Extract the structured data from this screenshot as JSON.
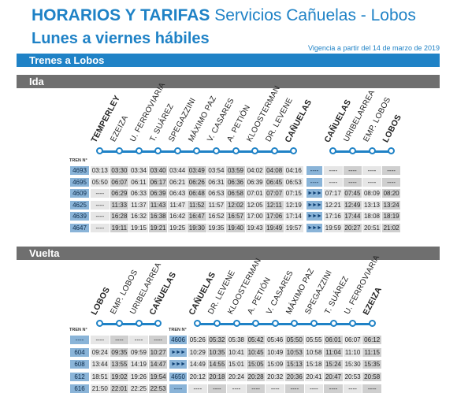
{
  "header": {
    "title_bold": "HORARIOS Y TARIFAS",
    "title_rest": "Servicios Cañuelas - Lobos",
    "subtitle": "Lunes a viernes hábiles",
    "vigencia": "Vigencia a partir del 14 de marzo de 2019"
  },
  "section": "Trenes a Lobos",
  "tren_label": "TREN N°",
  "colors": {
    "accent": "#1f82c6",
    "bar_gray": "#6f6f6f",
    "train_cell": "#8ab4d8",
    "cell_light": "#e6e6e6",
    "cell_mid": "#cfcfcf"
  },
  "ida": {
    "title": "Ida",
    "stations_left": [
      {
        "name": "TEMPERLEY",
        "bold": true
      },
      {
        "name": "EZEIZA",
        "bold": false
      },
      {
        "name": "U. FERROVIARIA",
        "bold": false
      },
      {
        "name": "T. SUÁREZ",
        "bold": false
      },
      {
        "name": "SPEGAZZINI",
        "bold": false
      },
      {
        "name": "MÁXIMO PAZ",
        "bold": false
      },
      {
        "name": "V. CASARES",
        "bold": false
      },
      {
        "name": "A. PETIÓN",
        "bold": false
      },
      {
        "name": "KLOOSTERMAN",
        "bold": false
      },
      {
        "name": "DR. LEVENE",
        "bold": false
      },
      {
        "name": "CAÑUELAS",
        "bold": true
      }
    ],
    "stations_right": [
      {
        "name": "CAÑUELAS",
        "bold": true
      },
      {
        "name": "URIBELARREA",
        "bold": false
      },
      {
        "name": "EMP. LOBOS",
        "bold": false
      },
      {
        "name": "LOBOS",
        "bold": true
      }
    ],
    "rows": [
      {
        "train": "4693",
        "left": [
          "03:13",
          "03:30",
          "03:34",
          "03:40",
          "03:44",
          "03:49",
          "03:54",
          "03:59",
          "04:02",
          "04:08",
          "04:16"
        ],
        "link": "----",
        "right": [
          "----",
          "----",
          "----",
          "----"
        ]
      },
      {
        "train": "4695",
        "left": [
          "05:50",
          "06:07",
          "06:11",
          "06:17",
          "06:21",
          "06:26",
          "06:31",
          "06:36",
          "06:39",
          "06:45",
          "06:53"
        ],
        "link": "----",
        "right": [
          "----",
          "----",
          "----",
          "----"
        ]
      },
      {
        "train": "4609",
        "left": [
          "----",
          "06:29",
          "06:33",
          "06:39",
          "06:43",
          "06:48",
          "06:53",
          "06:58",
          "07:01",
          "07:07",
          "07:15"
        ],
        "link": "►►►",
        "right": [
          "07:17",
          "07:45",
          "08:09",
          "08:20"
        ]
      },
      {
        "train": "4625",
        "left": [
          "----",
          "11:33",
          "11:37",
          "11:43",
          "11:47",
          "11:52",
          "11:57",
          "12:02",
          "12:05",
          "12:11",
          "12:19"
        ],
        "link": "►►►",
        "right": [
          "12:21",
          "12:49",
          "13:13",
          "13:24"
        ]
      },
      {
        "train": "4639",
        "left": [
          "----",
          "16:28",
          "16:32",
          "16:38",
          "16:42",
          "16:47",
          "16:52",
          "16:57",
          "17:00",
          "17:06",
          "17:14"
        ],
        "link": "►►►",
        "right": [
          "17:16",
          "17:44",
          "18:08",
          "18:19"
        ]
      },
      {
        "train": "4647",
        "left": [
          "----",
          "19:11",
          "19:15",
          "19:21",
          "19:25",
          "19:30",
          "19:35",
          "19:40",
          "19:43",
          "19:49",
          "19:57"
        ],
        "link": "►►►",
        "right": [
          "19:59",
          "20:27",
          "20:51",
          "21:02"
        ]
      }
    ]
  },
  "vuelta": {
    "title": "Vuelta",
    "stations_left": [
      {
        "name": "LOBOS",
        "bold": true
      },
      {
        "name": "EMP. LOBOS",
        "bold": false
      },
      {
        "name": "URIBELARREA",
        "bold": false
      },
      {
        "name": "CAÑUELAS",
        "bold": true
      }
    ],
    "stations_right": [
      {
        "name": "CAÑUELAS",
        "bold": true
      },
      {
        "name": "DR. LEVENE",
        "bold": false
      },
      {
        "name": "KLOOSTERMAN",
        "bold": false
      },
      {
        "name": "A. PETIÓN",
        "bold": false
      },
      {
        "name": "V. CASARES",
        "bold": false
      },
      {
        "name": "MÁXIMO PAZ",
        "bold": false
      },
      {
        "name": "SPEGAZZINI",
        "bold": false
      },
      {
        "name": "T. SUÁREZ",
        "bold": false
      },
      {
        "name": "U. FERROVIARIA",
        "bold": false
      },
      {
        "name": "EZEIZA",
        "bold": true
      }
    ],
    "rows": [
      {
        "train": "----",
        "left": [
          "----",
          "----",
          "----",
          "----"
        ],
        "link": "4606",
        "right": [
          "05:26",
          "05:32",
          "05:38",
          "05:42",
          "05:46",
          "05:50",
          "05:55",
          "06:01",
          "06:07",
          "06:12"
        ]
      },
      {
        "train": "604",
        "left": [
          "09:24",
          "09:35",
          "09:59",
          "10:27"
        ],
        "link": "►►►",
        "right": [
          "10:29",
          "10:35",
          "10:41",
          "10:45",
          "10:49",
          "10:53",
          "10:58",
          "11:04",
          "11:10",
          "11:15"
        ]
      },
      {
        "train": "608",
        "left": [
          "13:44",
          "13:55",
          "14:19",
          "14:47"
        ],
        "link": "►►►",
        "right": [
          "14:49",
          "14:55",
          "15:01",
          "15:05",
          "15:09",
          "15:13",
          "15:18",
          "15:24",
          "15:30",
          "15:35"
        ]
      },
      {
        "train": "612",
        "left": [
          "18:51",
          "19:02",
          "19:26",
          "19:54"
        ],
        "link": "4650",
        "right": [
          "20:12",
          "20:18",
          "20:24",
          "20:28",
          "20:32",
          "20:36",
          "20:41",
          "20:47",
          "20:53",
          "20:58"
        ]
      },
      {
        "train": "616",
        "left": [
          "21:50",
          "22:01",
          "22:25",
          "22:53"
        ],
        "link": "----",
        "right": [
          "----",
          "----",
          "----",
          "----",
          "----",
          "----",
          "----",
          "----",
          "----",
          "----"
        ]
      }
    ]
  }
}
